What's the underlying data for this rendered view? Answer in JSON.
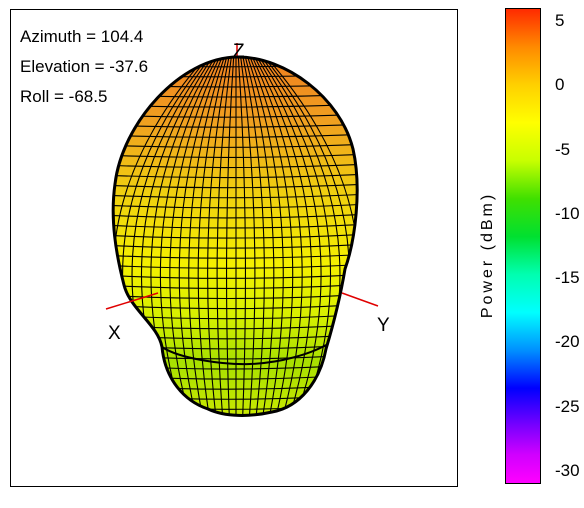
{
  "view": {
    "azimuth": "Azimuth = 104.4",
    "elevation": "Elevation = -37.6",
    "roll": "Roll = -68.5"
  },
  "axes": {
    "x": "X",
    "y": "Y",
    "z": "Z"
  },
  "colorbar": {
    "label": "Power (dBm)",
    "ticks": [
      "5",
      "0",
      "-5",
      "-10",
      "-15",
      "-20",
      "-25",
      "-30"
    ],
    "range": [
      -31,
      6
    ],
    "colors": [
      "#ff2a00",
      "#ff8a00",
      "#ffd000",
      "#ffff00",
      "#40e000",
      "#00ffff",
      "#0000ff",
      "#ff00ff"
    ]
  }
}
